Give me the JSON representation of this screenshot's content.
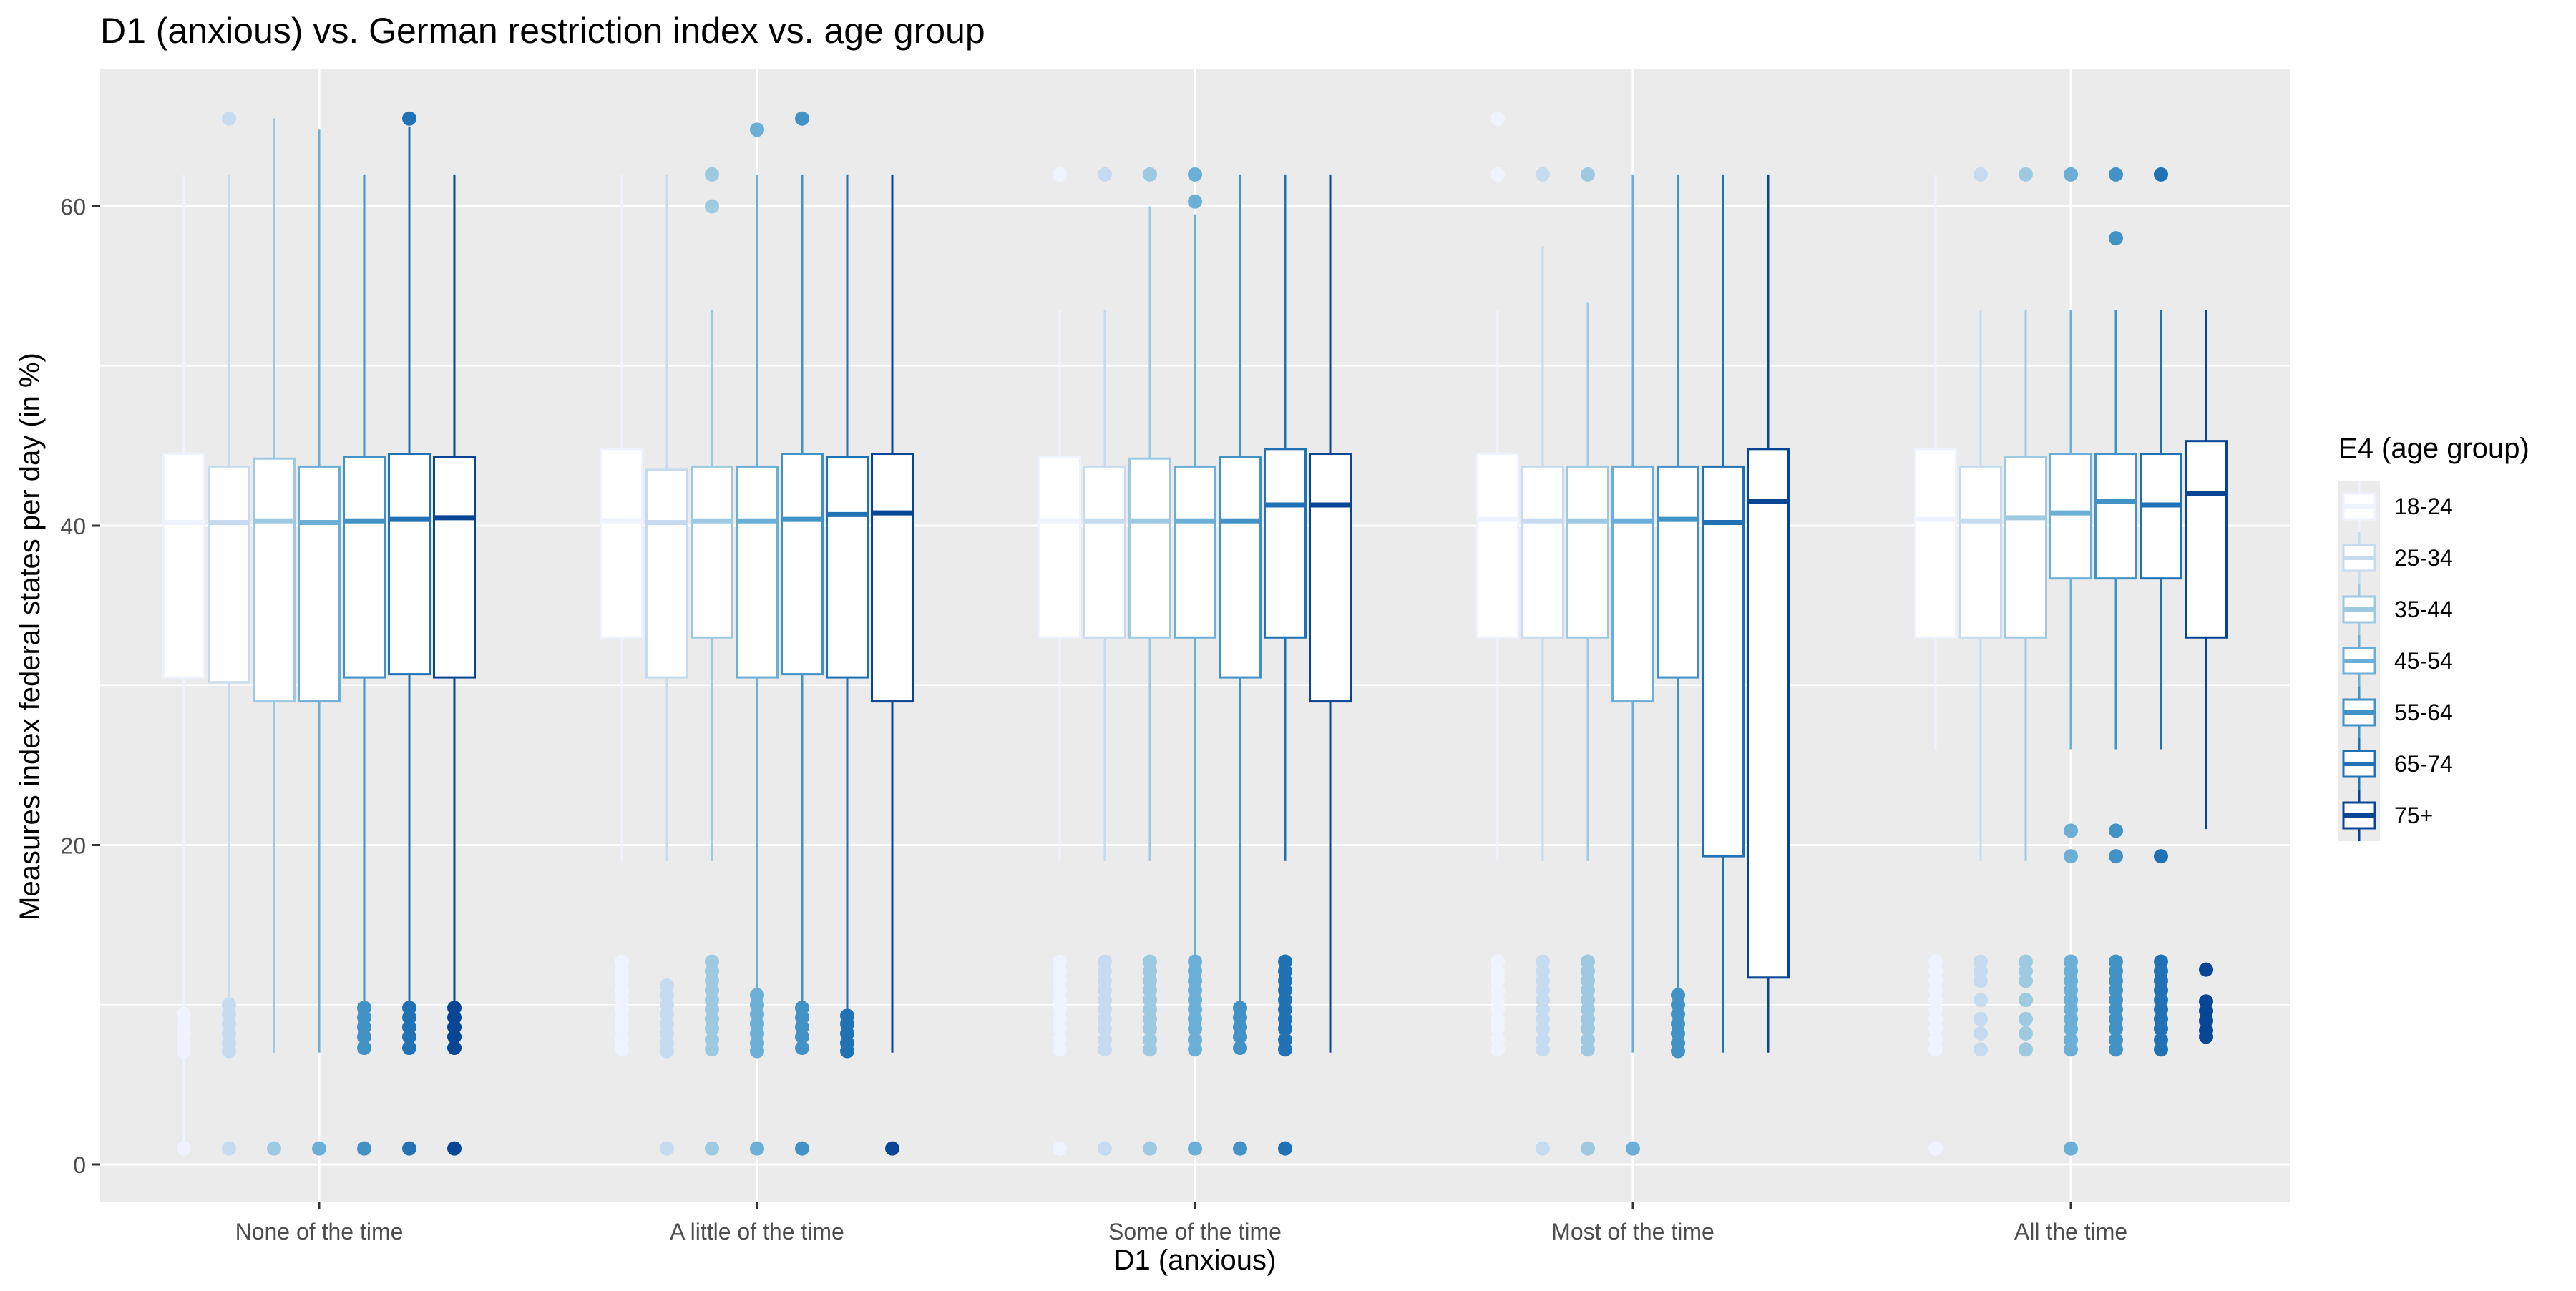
{
  "chart_data": {
    "type": "boxplot",
    "title": "D1 (anxious) vs. German restriction index vs. age group",
    "xlabel": "D1 (anxious)",
    "ylabel": "Measures index federal states per day (in %)",
    "categories": [
      "None of the time",
      "A little of the time",
      "Some of the time",
      "Most of the time",
      "All the time"
    ],
    "yticks": [
      0,
      20,
      40,
      60
    ],
    "ylim": [
      -2.5,
      68.5
    ],
    "grid": true,
    "legend": {
      "title": "E4 (age group)",
      "position": "right",
      "labels": [
        "18-24",
        "25-34",
        "35-44",
        "45-54",
        "55-64",
        "65-74",
        "75+"
      ],
      "colors": [
        "#eff3ff",
        "#c6dbef",
        "#9ecae1",
        "#6baed6",
        "#4292c6",
        "#2171b5",
        "#084594"
      ]
    },
    "series": [
      {
        "name": "18-24",
        "color": "#eff3ff",
        "boxes": [
          {
            "low": 1,
            "q1": 30.5,
            "median": 40.2,
            "q3": 44.5,
            "high": 62,
            "outliers": [
              9.4,
              8.8,
              8.2,
              7.6,
              7.1,
              1.0
            ]
          },
          {
            "low": 19,
            "q1": 33,
            "median": 40.3,
            "q3": 44.8,
            "high": 62,
            "outliers": [
              12.7,
              12.1,
              11.5,
              10.9,
              10.3,
              9.7,
              9.1,
              8.5,
              7.8,
              7.2
            ]
          },
          {
            "low": 19,
            "q1": 33,
            "median": 40.3,
            "q3": 44.3,
            "high": 53.5,
            "outliers": [
              62,
              12.7,
              12.1,
              11.5,
              10.9,
              10.3,
              9.7,
              9.1,
              8.5,
              7.8,
              7.2,
              1.0
            ]
          },
          {
            "low": 19,
            "q1": 33,
            "median": 40.4,
            "q3": 44.5,
            "high": 53.5,
            "outliers": [
              65.5,
              62,
              12.7,
              12.1,
              11.5,
              10.9,
              10.3,
              9.7,
              9.1,
              8.5,
              7.8,
              7.2
            ]
          },
          {
            "low": 26,
            "q1": 33,
            "median": 40.4,
            "q3": 44.8,
            "high": 62,
            "outliers": [
              12.7,
              12.1,
              11.5,
              10.9,
              10.3,
              9.7,
              9.1,
              8.5,
              7.8,
              7.2,
              1.0
            ]
          }
        ]
      },
      {
        "name": "25-34",
        "color": "#c6dbef",
        "boxes": [
          {
            "low": 7,
            "q1": 30.2,
            "median": 40.2,
            "q3": 43.7,
            "high": 62,
            "outliers": [
              65.5,
              10.0,
              9.4,
              8.8,
              8.2,
              7.6,
              7.1,
              1.0
            ]
          },
          {
            "low": 19,
            "q1": 30.5,
            "median": 40.2,
            "q3": 43.5,
            "high": 62,
            "outliers": [
              11.2,
              10.6,
              10.0,
              9.4,
              8.8,
              8.2,
              7.6,
              7.1,
              1.0
            ]
          },
          {
            "low": 19,
            "q1": 33,
            "median": 40.3,
            "q3": 43.7,
            "high": 53.5,
            "outliers": [
              62,
              12.7,
              12.1,
              11.5,
              10.9,
              10.3,
              9.7,
              9.1,
              8.5,
              7.8,
              7.2,
              1.0
            ]
          },
          {
            "low": 19,
            "q1": 33,
            "median": 40.3,
            "q3": 43.7,
            "high": 57.5,
            "outliers": [
              62,
              12.7,
              12.1,
              11.5,
              10.9,
              10.3,
              9.7,
              9.1,
              8.5,
              7.8,
              7.2,
              1.0
            ]
          },
          {
            "low": 19,
            "q1": 33,
            "median": 40.3,
            "q3": 43.7,
            "high": 53.5,
            "outliers": [
              62,
              12.7,
              12.1,
              11.5,
              10.3,
              9.1,
              8.2,
              7.2
            ]
          }
        ]
      },
      {
        "name": "35-44",
        "color": "#9ecae1",
        "boxes": [
          {
            "low": 7,
            "q1": 29,
            "median": 40.3,
            "q3": 44.2,
            "high": 65.5,
            "outliers": [
              1.0
            ]
          },
          {
            "low": 19,
            "q1": 33,
            "median": 40.3,
            "q3": 43.7,
            "high": 53.5,
            "outliers": [
              62,
              60,
              12.7,
              12.1,
              11.5,
              10.9,
              10.3,
              9.7,
              9.1,
              8.5,
              7.8,
              7.2,
              1.0
            ]
          },
          {
            "low": 19,
            "q1": 33,
            "median": 40.3,
            "q3": 44.2,
            "high": 60,
            "outliers": [
              62,
              12.7,
              12.1,
              11.5,
              10.9,
              10.3,
              9.7,
              9.1,
              8.5,
              7.8,
              7.2,
              1.0
            ]
          },
          {
            "low": 19,
            "q1": 33,
            "median": 40.3,
            "q3": 43.7,
            "high": 54,
            "outliers": [
              62,
              12.7,
              12.1,
              11.5,
              10.9,
              10.3,
              9.7,
              9.1,
              8.5,
              7.8,
              7.2,
              1.0
            ]
          },
          {
            "low": 19,
            "q1": 33,
            "median": 40.5,
            "q3": 44.3,
            "high": 53.5,
            "outliers": [
              62,
              12.7,
              12.1,
              11.5,
              10.3,
              9.1,
              8.2,
              7.2
            ]
          }
        ]
      },
      {
        "name": "45-54",
        "color": "#6baed6",
        "boxes": [
          {
            "low": 7,
            "q1": 29,
            "median": 40.2,
            "q3": 43.7,
            "high": 64.8,
            "outliers": [
              1.0
            ]
          },
          {
            "low": 7,
            "q1": 30.5,
            "median": 40.3,
            "q3": 43.7,
            "high": 62,
            "outliers": [
              64.8,
              10.6,
              10.0,
              9.4,
              8.8,
              8.2,
              7.6,
              7.1,
              1.0
            ]
          },
          {
            "low": 7,
            "q1": 33,
            "median": 40.3,
            "q3": 43.7,
            "high": 59.5,
            "outliers": [
              62,
              60.3,
              12.7,
              12.1,
              11.5,
              10.9,
              10.3,
              9.7,
              9.1,
              8.5,
              7.8,
              7.2,
              1.0
            ]
          },
          {
            "low": 7,
            "q1": 29,
            "median": 40.3,
            "q3": 43.7,
            "high": 62,
            "outliers": [
              1.0
            ]
          },
          {
            "low": 26,
            "q1": 36.7,
            "median": 40.8,
            "q3": 44.5,
            "high": 53.5,
            "outliers": [
              62,
              20.9,
              19.3,
              12.7,
              12.1,
              11.5,
              10.9,
              10.3,
              9.7,
              9.1,
              8.5,
              7.8,
              7.2,
              1.0
            ]
          }
        ]
      },
      {
        "name": "55-64",
        "color": "#4292c6",
        "boxes": [
          {
            "low": 7,
            "q1": 30.5,
            "median": 40.3,
            "q3": 44.3,
            "high": 62,
            "outliers": [
              9.8,
              9.2,
              8.6,
              8.0,
              7.3,
              1.0
            ]
          },
          {
            "low": 7,
            "q1": 30.7,
            "median": 40.4,
            "q3": 44.5,
            "high": 62,
            "outliers": [
              65.5,
              9.8,
              9.2,
              8.6,
              8.0,
              7.3,
              1.0
            ]
          },
          {
            "low": 7,
            "q1": 30.5,
            "median": 40.3,
            "q3": 44.3,
            "high": 62,
            "outliers": [
              9.8,
              9.2,
              8.6,
              8.0,
              7.3,
              1.0
            ]
          },
          {
            "low": 7,
            "q1": 30.5,
            "median": 40.4,
            "q3": 43.7,
            "high": 62,
            "outliers": [
              10.6,
              10.0,
              9.4,
              8.8,
              8.2,
              7.6,
              7.1
            ]
          },
          {
            "low": 26,
            "q1": 36.7,
            "median": 41.5,
            "q3": 44.5,
            "high": 53.5,
            "outliers": [
              62,
              58,
              20.9,
              19.3,
              12.7,
              12.1,
              11.5,
              10.9,
              10.3,
              9.7,
              9.1,
              8.5,
              7.8,
              7.2
            ]
          }
        ]
      },
      {
        "name": "65-74",
        "color": "#2171b5",
        "boxes": [
          {
            "low": 7,
            "q1": 30.7,
            "median": 40.4,
            "q3": 44.5,
            "high": 65,
            "outliers": [
              65.5,
              9.8,
              9.2,
              8.6,
              8.0,
              7.3,
              1.0
            ]
          },
          {
            "low": 7,
            "q1": 30.5,
            "median": 40.7,
            "q3": 44.3,
            "high": 62,
            "outliers": [
              9.3,
              8.8,
              8.2,
              7.6,
              7.1
            ]
          },
          {
            "low": 19,
            "q1": 33,
            "median": 41.3,
            "q3": 44.8,
            "high": 62,
            "outliers": [
              12.7,
              12.1,
              11.5,
              10.9,
              10.3,
              9.7,
              9.1,
              8.5,
              7.8,
              7.2,
              1.0
            ]
          },
          {
            "low": 7,
            "q1": 19.3,
            "median": 40.2,
            "q3": 43.7,
            "high": 62,
            "outliers": []
          },
          {
            "low": 26,
            "q1": 36.7,
            "median": 41.3,
            "q3": 44.5,
            "high": 53.5,
            "outliers": [
              62,
              19.3,
              12.7,
              12.1,
              11.5,
              10.9,
              10.3,
              9.7,
              9.1,
              8.5,
              7.8,
              7.2
            ]
          }
        ]
      },
      {
        "name": "75+",
        "color": "#084594",
        "boxes": [
          {
            "low": 7,
            "q1": 30.5,
            "median": 40.5,
            "q3": 44.3,
            "high": 62,
            "outliers": [
              9.8,
              9.2,
              8.6,
              8.0,
              7.3,
              1.0
            ]
          },
          {
            "low": 7,
            "q1": 29,
            "median": 40.8,
            "q3": 44.5,
            "high": 62,
            "outliers": [
              1.0
            ]
          },
          {
            "low": 7,
            "q1": 29,
            "median": 41.3,
            "q3": 44.5,
            "high": 62,
            "outliers": []
          },
          {
            "low": 7,
            "q1": 11.7,
            "median": 41.5,
            "q3": 44.8,
            "high": 62,
            "outliers": []
          },
          {
            "low": 21,
            "q1": 33,
            "median": 42,
            "q3": 45.3,
            "high": 53.5,
            "outliers": [
              12.2,
              10.2,
              9.6,
              9.0,
              8.4,
              8.0
            ]
          }
        ]
      }
    ]
  }
}
